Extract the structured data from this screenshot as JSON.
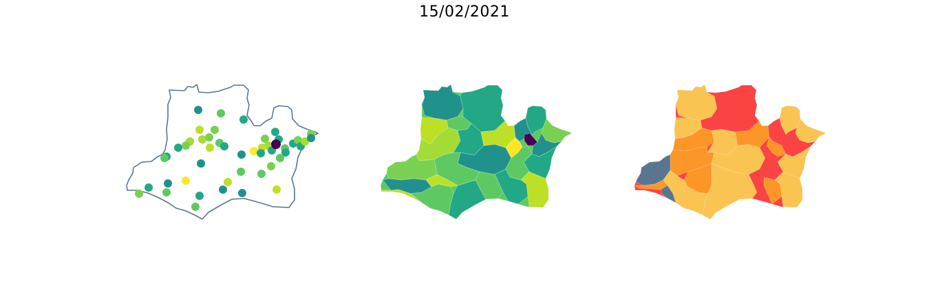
{
  "figure": {
    "title": "15/02/2021"
  },
  "panels": [
    {
      "kind": "point-map",
      "outline_color": "#5a7590"
    },
    {
      "kind": "choropleth",
      "palette": [
        "#440154",
        "#21918c",
        "#22a884",
        "#5ec962",
        "#7ad151",
        "#bddf26",
        "#fde725"
      ]
    },
    {
      "kind": "risk-choropleth",
      "palette": [
        "#fa4343",
        "#fc9626",
        "#fac452",
        "#5a7590"
      ]
    }
  ]
}
